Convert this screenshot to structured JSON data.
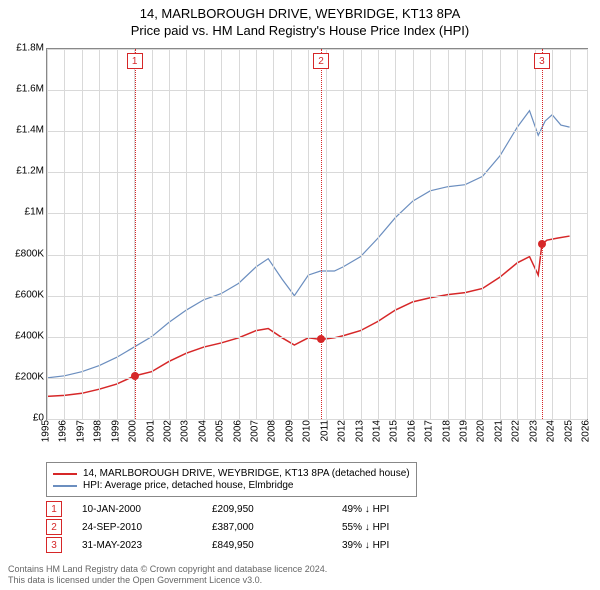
{
  "header": {
    "title1": "14, MARLBOROUGH DRIVE, WEYBRIDGE, KT13 8PA",
    "title2": "Price paid vs. HM Land Registry's House Price Index (HPI)"
  },
  "chart": {
    "type": "line",
    "background_color": "#ffffff",
    "grid_color": "#d9d9d9",
    "axis_color": "#888888",
    "x": {
      "min": 1995,
      "max": 2026,
      "ticks": [
        1995,
        1996,
        1997,
        1998,
        1999,
        2000,
        2001,
        2002,
        2003,
        2004,
        2005,
        2006,
        2007,
        2008,
        2009,
        2010,
        2011,
        2012,
        2013,
        2014,
        2015,
        2016,
        2017,
        2018,
        2019,
        2020,
        2021,
        2022,
        2023,
        2024,
        2025,
        2026
      ],
      "label_fontsize": 10,
      "rotate": -90
    },
    "y": {
      "min": 0,
      "max": 1800000,
      "ticks": [
        0,
        200000,
        400000,
        600000,
        800000,
        1000000,
        1200000,
        1400000,
        1600000,
        1800000
      ],
      "tick_labels": [
        "£0",
        "£200K",
        "£400K",
        "£600K",
        "£800K",
        "£1M",
        "£1.2M",
        "£1.4M",
        "£1.6M",
        "£1.8M"
      ],
      "label_fontsize": 10
    },
    "series": [
      {
        "id": "price_paid",
        "label": "14, MARLBOROUGH DRIVE, WEYBRIDGE, KT13 8PA (detached house)",
        "color": "#d62728",
        "line_width": 1.5,
        "data": [
          [
            1995.0,
            110000
          ],
          [
            1996.0,
            115000
          ],
          [
            1997.0,
            125000
          ],
          [
            1998.0,
            145000
          ],
          [
            1999.0,
            170000
          ],
          [
            2000.03,
            209950
          ],
          [
            2001.0,
            230000
          ],
          [
            2002.0,
            280000
          ],
          [
            2003.0,
            320000
          ],
          [
            2004.0,
            350000
          ],
          [
            2005.0,
            370000
          ],
          [
            2006.0,
            395000
          ],
          [
            2007.0,
            430000
          ],
          [
            2007.7,
            440000
          ],
          [
            2008.5,
            395000
          ],
          [
            2009.2,
            360000
          ],
          [
            2010.0,
            395000
          ],
          [
            2010.73,
            387000
          ],
          [
            2011.5,
            395000
          ],
          [
            2012.0,
            405000
          ],
          [
            2013.0,
            430000
          ],
          [
            2014.0,
            475000
          ],
          [
            2015.0,
            530000
          ],
          [
            2016.0,
            570000
          ],
          [
            2017.0,
            590000
          ],
          [
            2018.0,
            605000
          ],
          [
            2019.0,
            615000
          ],
          [
            2020.0,
            635000
          ],
          [
            2021.0,
            690000
          ],
          [
            2022.0,
            760000
          ],
          [
            2022.7,
            790000
          ],
          [
            2023.2,
            700000
          ],
          [
            2023.41,
            849950
          ],
          [
            2023.7,
            870000
          ],
          [
            2024.3,
            880000
          ],
          [
            2025.0,
            890000
          ]
        ]
      },
      {
        "id": "hpi",
        "label": "HPI: Average price, detached house, Elmbridge",
        "color": "#6b8ebf",
        "line_width": 1.2,
        "data": [
          [
            1995.0,
            200000
          ],
          [
            1996.0,
            210000
          ],
          [
            1997.0,
            230000
          ],
          [
            1998.0,
            260000
          ],
          [
            1999.0,
            300000
          ],
          [
            2000.0,
            350000
          ],
          [
            2001.0,
            400000
          ],
          [
            2002.0,
            470000
          ],
          [
            2003.0,
            530000
          ],
          [
            2004.0,
            580000
          ],
          [
            2005.0,
            610000
          ],
          [
            2006.0,
            660000
          ],
          [
            2007.0,
            740000
          ],
          [
            2007.7,
            780000
          ],
          [
            2008.5,
            680000
          ],
          [
            2009.2,
            600000
          ],
          [
            2010.0,
            700000
          ],
          [
            2010.7,
            720000
          ],
          [
            2011.5,
            720000
          ],
          [
            2012.0,
            740000
          ],
          [
            2013.0,
            790000
          ],
          [
            2014.0,
            880000
          ],
          [
            2015.0,
            980000
          ],
          [
            2016.0,
            1060000
          ],
          [
            2017.0,
            1110000
          ],
          [
            2018.0,
            1130000
          ],
          [
            2019.0,
            1140000
          ],
          [
            2020.0,
            1180000
          ],
          [
            2021.0,
            1280000
          ],
          [
            2022.0,
            1420000
          ],
          [
            2022.7,
            1500000
          ],
          [
            2023.2,
            1380000
          ],
          [
            2023.6,
            1450000
          ],
          [
            2024.0,
            1480000
          ],
          [
            2024.5,
            1430000
          ],
          [
            2025.0,
            1420000
          ]
        ]
      }
    ],
    "sale_markers": [
      {
        "n": "1",
        "x": 2000.03,
        "y": 209950
      },
      {
        "n": "2",
        "x": 2010.73,
        "y": 387000
      },
      {
        "n": "3",
        "x": 2023.41,
        "y": 849950
      }
    ],
    "marker_border_color": "#d62728",
    "marker_fill_color": "#d62728",
    "marker_text_color": "#d62728"
  },
  "legend": {
    "items": [
      {
        "color": "#d62728",
        "label": "14, MARLBOROUGH DRIVE, WEYBRIDGE, KT13 8PA (detached house)"
      },
      {
        "color": "#6b8ebf",
        "label": "HPI: Average price, detached house, Elmbridge"
      }
    ]
  },
  "sales": [
    {
      "n": "1",
      "date": "10-JAN-2000",
      "price": "£209,950",
      "pct": "49% ↓ HPI"
    },
    {
      "n": "2",
      "date": "24-SEP-2010",
      "price": "£387,000",
      "pct": "55% ↓ HPI"
    },
    {
      "n": "3",
      "date": "31-MAY-2023",
      "price": "£849,950",
      "pct": "39% ↓ HPI"
    }
  ],
  "footer": {
    "line1": "Contains HM Land Registry data © Crown copyright and database licence 2024.",
    "line2": "This data is licensed under the Open Government Licence v3.0."
  }
}
